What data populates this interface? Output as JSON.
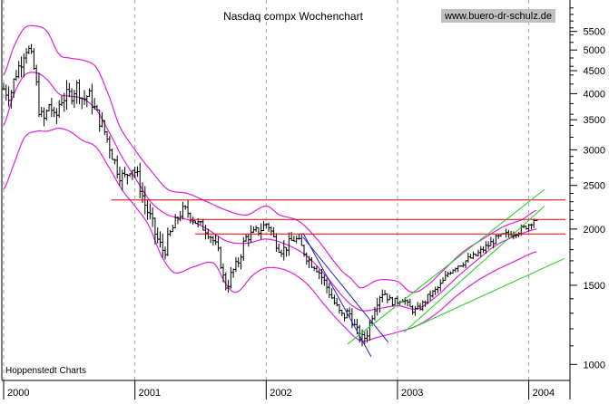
{
  "title": "Nasdaq compx Wochenchart",
  "source_label": "www.buero-dr-schulz.de",
  "credit": "Hoppenstedt Charts",
  "colors": {
    "background": "#ffffff",
    "price_bars": "#000000",
    "bands": "#e020e0",
    "resistance": "#e00000",
    "uptrend": "#22cc22",
    "downtrend": "#2222cc",
    "grid": "#a8a8a8",
    "source_bg": "#c0c0c0"
  },
  "chart_data": {
    "type": "candlestick",
    "scale": "log",
    "xlabel": "",
    "ylabel": "",
    "x_range": [
      2000.0,
      2004.3
    ],
    "y_range": [
      930,
      6400
    ],
    "grid": "vertical dashed at year boundaries",
    "x_ticks": [
      {
        "x": 2000,
        "label": "2000"
      },
      {
        "x": 2001,
        "label": "2001"
      },
      {
        "x": 2002,
        "label": "2002"
      },
      {
        "x": 2003,
        "label": "2003"
      },
      {
        "x": 2004,
        "label": "2004"
      }
    ],
    "y_ticks": [
      {
        "y": 1000,
        "label": "1000"
      },
      {
        "y": 1500,
        "label": "1500"
      },
      {
        "y": 2000,
        "label": "2000"
      },
      {
        "y": 2500,
        "label": "2500"
      },
      {
        "y": 3000,
        "label": "3000"
      },
      {
        "y": 3500,
        "label": "3500"
      },
      {
        "y": 4000,
        "label": "4000"
      },
      {
        "y": 4500,
        "label": "4500"
      },
      {
        "y": 5000,
        "label": "5000"
      },
      {
        "y": 5500,
        "label": "5500"
      }
    ],
    "y_minor_ticks": [
      1100,
      1200,
      1300,
      1400,
      1600,
      1700,
      1800,
      1900,
      2100,
      2200,
      2300,
      2400,
      2600,
      2700,
      2800,
      2900,
      3200,
      3400,
      3600,
      3800,
      4200,
      4400,
      4600,
      4800,
      5200,
      5400,
      5600,
      5800,
      6000,
      6200
    ],
    "price_path": [
      [
        2000.0,
        4100
      ],
      [
        2000.05,
        4000
      ],
      [
        2000.09,
        4400
      ],
      [
        2000.13,
        4700
      ],
      [
        2000.17,
        5050
      ],
      [
        2000.2,
        4900
      ],
      [
        2000.24,
        4400
      ],
      [
        2000.27,
        3700
      ],
      [
        2000.31,
        3500
      ],
      [
        2000.35,
        3800
      ],
      [
        2000.39,
        3500
      ],
      [
        2000.43,
        3850
      ],
      [
        2000.48,
        3950
      ],
      [
        2000.52,
        4000
      ],
      [
        2000.56,
        4150
      ],
      [
        2000.6,
        3900
      ],
      [
        2000.65,
        3950
      ],
      [
        2000.7,
        3650
      ],
      [
        2000.75,
        3400
      ],
      [
        2000.8,
        3100
      ],
      [
        2000.86,
        2750
      ],
      [
        2000.92,
        2600
      ],
      [
        2000.97,
        2750
      ],
      [
        2001.02,
        2600
      ],
      [
        2001.07,
        2300
      ],
      [
        2001.12,
        2100
      ],
      [
        2001.17,
        1900
      ],
      [
        2001.22,
        1800
      ],
      [
        2001.27,
        1950
      ],
      [
        2001.32,
        2100
      ],
      [
        2001.37,
        2200
      ],
      [
        2001.42,
        2150
      ],
      [
        2001.48,
        2050
      ],
      [
        2001.54,
        2000
      ],
      [
        2001.59,
        1900
      ],
      [
        2001.64,
        1750
      ],
      [
        2001.69,
        1500
      ],
      [
        2001.74,
        1600
      ],
      [
        2001.79,
        1700
      ],
      [
        2001.84,
        1900
      ],
      [
        2001.9,
        1950
      ],
      [
        2001.96,
        2000
      ],
      [
        2002.01,
        2050
      ],
      [
        2002.06,
        1900
      ],
      [
        2002.12,
        1800
      ],
      [
        2002.17,
        1850
      ],
      [
        2002.22,
        1900
      ],
      [
        2002.28,
        1800
      ],
      [
        2002.33,
        1700
      ],
      [
        2002.38,
        1650
      ],
      [
        2002.43,
        1550
      ],
      [
        2002.48,
        1450
      ],
      [
        2002.53,
        1350
      ],
      [
        2002.58,
        1280
      ],
      [
        2002.63,
        1300
      ],
      [
        2002.68,
        1200
      ],
      [
        2002.73,
        1140
      ],
      [
        2002.77,
        1180
      ],
      [
        2002.81,
        1300
      ],
      [
        2002.85,
        1400
      ],
      [
        2002.89,
        1450
      ],
      [
        2002.94,
        1390
      ],
      [
        2002.99,
        1380
      ],
      [
        2003.04,
        1400
      ],
      [
        2003.09,
        1340
      ],
      [
        2003.14,
        1320
      ],
      [
        2003.19,
        1360
      ],
      [
        2003.24,
        1420
      ],
      [
        2003.29,
        1460
      ],
      [
        2003.34,
        1520
      ],
      [
        2003.39,
        1600
      ],
      [
        2003.44,
        1650
      ],
      [
        2003.49,
        1680
      ],
      [
        2003.55,
        1720
      ],
      [
        2003.6,
        1750
      ],
      [
        2003.65,
        1800
      ],
      [
        2003.7,
        1850
      ],
      [
        2003.75,
        1900
      ],
      [
        2003.8,
        1930
      ],
      [
        2003.85,
        1950
      ],
      [
        2003.9,
        1970
      ],
      [
        2003.95,
        2000
      ],
      [
        2004.0,
        2050
      ],
      [
        2004.04,
        2100
      ],
      [
        2004.06,
        2060
      ]
    ],
    "bands": {
      "upper": [
        [
          2000.0,
          4400
        ],
        [
          2000.08,
          5100
        ],
        [
          2000.16,
          5600
        ],
        [
          2000.25,
          5650
        ],
        [
          2000.33,
          5500
        ],
        [
          2000.42,
          4900
        ],
        [
          2000.5,
          4800
        ],
        [
          2000.6,
          4750
        ],
        [
          2000.7,
          4600
        ],
        [
          2000.78,
          4100
        ],
        [
          2000.88,
          3400
        ],
        [
          2001.0,
          3000
        ],
        [
          2001.12,
          2700
        ],
        [
          2001.25,
          2450
        ],
        [
          2001.4,
          2400
        ],
        [
          2001.55,
          2300
        ],
        [
          2001.7,
          2200
        ],
        [
          2001.85,
          2150
        ],
        [
          2002.0,
          2250
        ],
        [
          2002.1,
          2150
        ],
        [
          2002.25,
          2080
        ],
        [
          2002.4,
          1880
        ],
        [
          2002.55,
          1650
        ],
        [
          2002.65,
          1550
        ],
        [
          2002.72,
          1480
        ],
        [
          2002.85,
          1540
        ],
        [
          2003.0,
          1530
        ],
        [
          2003.1,
          1450
        ],
        [
          2003.2,
          1480
        ],
        [
          2003.35,
          1620
        ],
        [
          2003.5,
          1780
        ],
        [
          2003.65,
          1900
        ],
        [
          2003.8,
          2020
        ],
        [
          2003.95,
          2100
        ],
        [
          2004.06,
          2200
        ]
      ],
      "middle": [
        [
          2000.0,
          3400
        ],
        [
          2000.08,
          4000
        ],
        [
          2000.16,
          4400
        ],
        [
          2000.25,
          4450
        ],
        [
          2000.33,
          4300
        ],
        [
          2000.42,
          4000
        ],
        [
          2000.5,
          3950
        ],
        [
          2000.6,
          3900
        ],
        [
          2000.7,
          3700
        ],
        [
          2000.8,
          3300
        ],
        [
          2000.9,
          2900
        ],
        [
          2001.0,
          2600
        ],
        [
          2001.12,
          2300
        ],
        [
          2001.25,
          2150
        ],
        [
          2001.4,
          2100
        ],
        [
          2001.55,
          2000
        ],
        [
          2001.7,
          1880
        ],
        [
          2001.85,
          1860
        ],
        [
          2002.0,
          1900
        ],
        [
          2002.15,
          1850
        ],
        [
          2002.3,
          1750
        ],
        [
          2002.45,
          1580
        ],
        [
          2002.6,
          1400
        ],
        [
          2002.72,
          1320
        ],
        [
          2002.85,
          1330
        ],
        [
          2003.0,
          1350
        ],
        [
          2003.15,
          1330
        ],
        [
          2003.3,
          1420
        ],
        [
          2003.45,
          1560
        ],
        [
          2003.6,
          1700
        ],
        [
          2003.75,
          1840
        ],
        [
          2003.9,
          1930
        ],
        [
          2004.06,
          2000
        ]
      ],
      "lower": [
        [
          2000.0,
          2450
        ],
        [
          2000.08,
          2800
        ],
        [
          2000.16,
          3200
        ],
        [
          2000.25,
          3300
        ],
        [
          2000.33,
          3300
        ],
        [
          2000.42,
          3350
        ],
        [
          2000.5,
          3300
        ],
        [
          2000.6,
          3150
        ],
        [
          2000.7,
          3050
        ],
        [
          2000.8,
          2750
        ],
        [
          2000.9,
          2450
        ],
        [
          2001.0,
          2250
        ],
        [
          2001.1,
          2050
        ],
        [
          2001.2,
          1750
        ],
        [
          2001.3,
          1600
        ],
        [
          2001.45,
          1650
        ],
        [
          2001.6,
          1680
        ],
        [
          2001.7,
          1500
        ],
        [
          2001.78,
          1450
        ],
        [
          2001.9,
          1580
        ],
        [
          2002.0,
          1640
        ],
        [
          2002.15,
          1620
        ],
        [
          2002.3,
          1520
        ],
        [
          2002.45,
          1350
        ],
        [
          2002.6,
          1210
        ],
        [
          2002.72,
          1130
        ],
        [
          2002.85,
          1150
        ],
        [
          2003.0,
          1180
        ],
        [
          2003.15,
          1220
        ],
        [
          2003.3,
          1300
        ],
        [
          2003.45,
          1420
        ],
        [
          2003.6,
          1530
        ],
        [
          2003.75,
          1620
        ],
        [
          2003.9,
          1700
        ],
        [
          2004.06,
          1780
        ]
      ]
    },
    "resistance_lines": [
      {
        "y": 2320,
        "from": 2000.82,
        "to": 2004.28
      },
      {
        "y": 2100,
        "from": 2001.42,
        "to": 2004.28
      },
      {
        "y": 1950,
        "from": 2001.46,
        "to": 2004.28
      }
    ],
    "trend_lines": [
      {
        "kind": "down",
        "from": [
          2002.28,
          1960
        ],
        "to": [
          2002.8,
          1040
        ]
      },
      {
        "kind": "down",
        "from": [
          2002.28,
          1920
        ],
        "to": [
          2002.93,
          1120
        ]
      },
      {
        "kind": "up",
        "from": [
          2002.62,
          1110
        ],
        "to": [
          2004.12,
          2450
        ]
      },
      {
        "kind": "up",
        "from": [
          2003.05,
          1180
        ],
        "to": [
          2004.12,
          2250
        ]
      },
      {
        "kind": "up",
        "from": [
          2003.1,
          1200
        ],
        "to": [
          2004.27,
          1720
        ]
      }
    ]
  }
}
